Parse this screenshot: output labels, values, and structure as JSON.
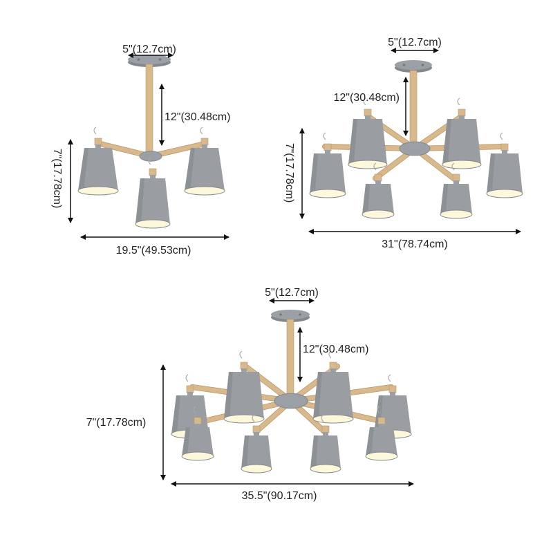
{
  "colors": {
    "shade": "#9a9ea3",
    "shade_dark": "#84888d",
    "inner": "#fdf7dc",
    "wood": "#d8b98c",
    "wood_dark": "#b8956a",
    "metal": "#9aa0a5",
    "arrow": "#111111"
  },
  "fixtures": [
    {
      "name": "3-light",
      "canopy_label": "5\"(12.7cm)",
      "rod_label": "12\"(30.48cm)",
      "height_label": "7\"(17.78cm)",
      "width_label": "19.5\"(49.53cm)",
      "shade_count": 3
    },
    {
      "name": "6-light",
      "canopy_label": "5\"(12.7cm)",
      "rod_label": "12\"(30.48cm)",
      "height_label": "7\"(17.78cm)",
      "width_label": "31\"(78.74cm)",
      "shade_count": 6
    },
    {
      "name": "8-light",
      "canopy_label": "5\"(12.7cm)",
      "rod_label": "12\"(30.48cm)",
      "height_label": "7\"(17.78cm)",
      "width_label": "35.5\"(90.17cm)",
      "shade_count": 8
    }
  ]
}
